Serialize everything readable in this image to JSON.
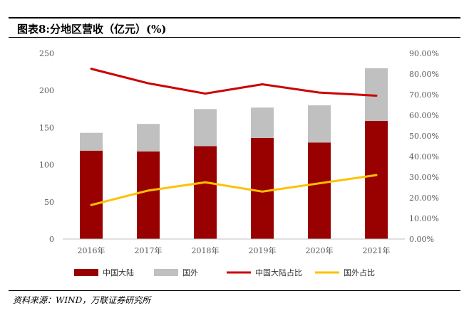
{
  "title": "图表8:分地区营收（亿元）(%)",
  "source": "资料来源：WIND，万联证券研究所",
  "chart_data": {
    "type": "bar",
    "stacked": true,
    "categories": [
      "2016年",
      "2017年",
      "2018年",
      "2019年",
      "2020年",
      "2021年"
    ],
    "series": [
      {
        "name": "中国大陆",
        "kind": "bar",
        "axis": "left",
        "color": "#990000",
        "values": [
          119,
          118,
          125,
          136,
          130,
          159
        ]
      },
      {
        "name": "国外",
        "kind": "bar",
        "axis": "left",
        "color": "#c0c0c0",
        "values": [
          24,
          37,
          50,
          41,
          50,
          71
        ]
      },
      {
        "name": "中国大陆占比",
        "kind": "line",
        "axis": "right",
        "color": "#cc0000",
        "values": [
          82.5,
          75.5,
          70.5,
          75.0,
          71.0,
          69.5
        ]
      },
      {
        "name": "国外占比",
        "kind": "line",
        "axis": "right",
        "color": "#ffc000",
        "values": [
          16.5,
          23.5,
          27.5,
          23.0,
          27.0,
          31.0
        ]
      }
    ],
    "left_axis": {
      "min": 0,
      "max": 250,
      "step": 50,
      "ticks": [
        "0",
        "50",
        "100",
        "150",
        "200",
        "250"
      ]
    },
    "right_axis": {
      "min": 0,
      "max": 90,
      "step": 10,
      "ticks": [
        "0.00%",
        "10.00%",
        "20.00%",
        "30.00%",
        "40.00%",
        "50.00%",
        "60.00%",
        "70.00%",
        "80.00%",
        "90.00%"
      ]
    },
    "legend": {
      "position": "bottom",
      "entries": [
        "中国大陆",
        "国外",
        "中国大陆占比",
        "国外占比"
      ]
    },
    "grid": false
  }
}
